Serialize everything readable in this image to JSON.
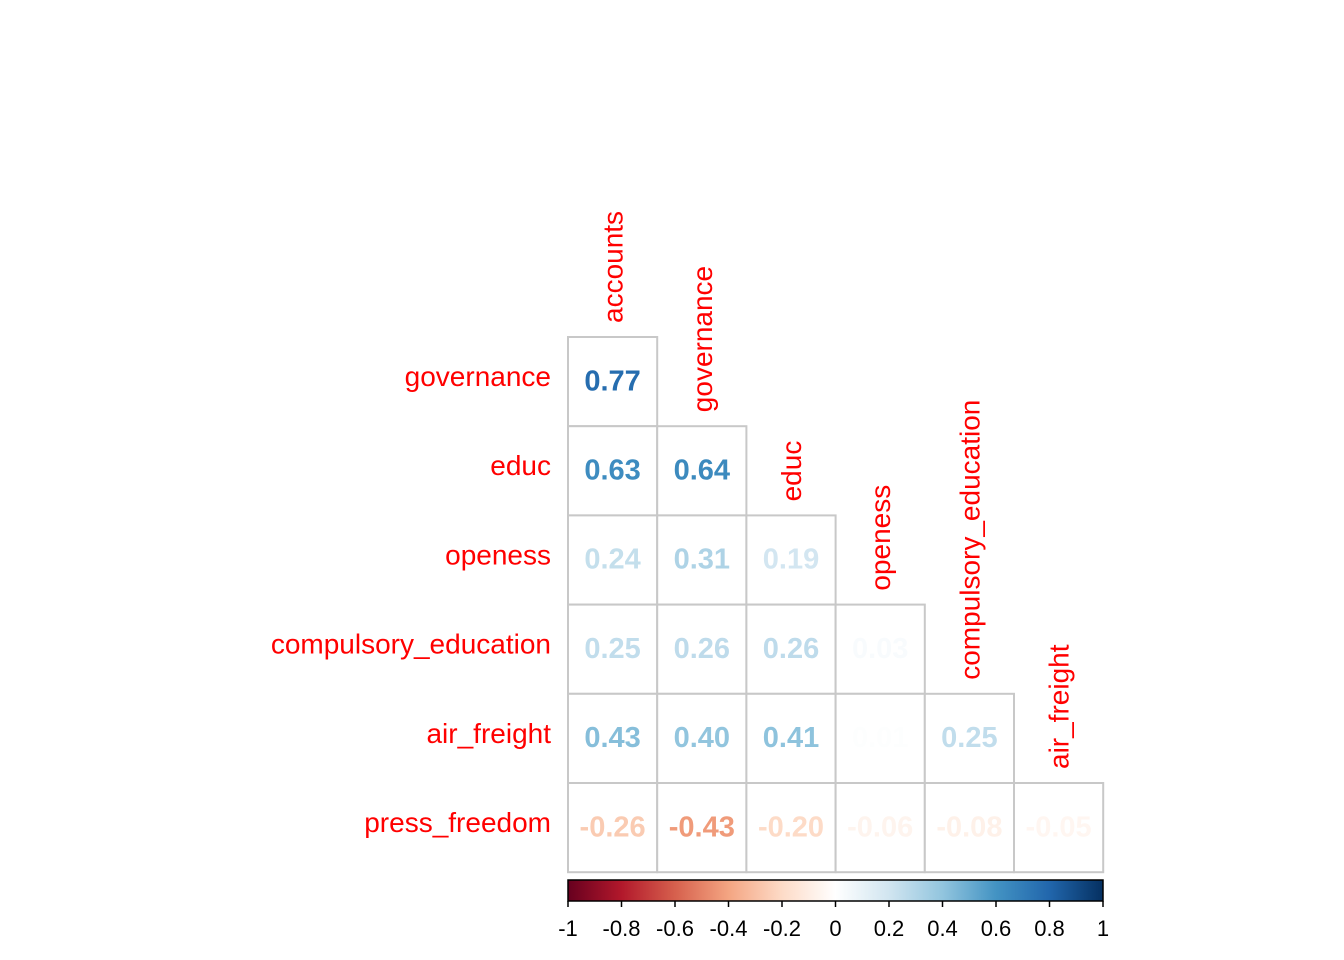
{
  "chart_data": {
    "type": "heatmap",
    "variables": [
      "accounts",
      "governance",
      "educ",
      "openess",
      "compulsory_education",
      "air_freight",
      "press_freedom"
    ],
    "row_labels": [
      "governance",
      "educ",
      "openess",
      "compulsory_education",
      "air_freight",
      "press_freedom"
    ],
    "column_labels": [
      "accounts",
      "governance",
      "educ",
      "openess",
      "compulsory_education",
      "air_freight"
    ],
    "matrix": [
      [
        0.77
      ],
      [
        0.63,
        0.64
      ],
      [
        0.24,
        0.31,
        0.19
      ],
      [
        0.25,
        0.26,
        0.26,
        0.03
      ],
      [
        0.43,
        0.4,
        0.41,
        0.01,
        0.25
      ],
      [
        -0.26,
        -0.43,
        -0.2,
        -0.06,
        -0.08,
        -0.05
      ]
    ],
    "cell_labels": [
      [
        "0.77"
      ],
      [
        "0.63",
        "0.64"
      ],
      [
        "0.24",
        "0.31",
        "0.19"
      ],
      [
        "0.25",
        "0.26",
        "0.26",
        "0.03"
      ],
      [
        "0.43",
        "0.40",
        "0.41",
        "0.01",
        "0.25"
      ],
      [
        "-0.26",
        "-0.43",
        "-0.20",
        "-0.06",
        "-0.08",
        "-0.05"
      ]
    ],
    "color_scale": {
      "range": [
        -1,
        1
      ],
      "ticks": [
        "-1",
        "-0.8",
        "-0.6",
        "-0.4",
        "-0.2",
        "0",
        "0.2",
        "0.4",
        "0.6",
        "0.8",
        "1"
      ],
      "colors": [
        "#67001F",
        "#B2182B",
        "#D6604D",
        "#F4A582",
        "#FDDBC7",
        "#FFFFFF",
        "#D1E5F0",
        "#92C5DE",
        "#4393C3",
        "#2166AC",
        "#053061"
      ]
    },
    "label_color": "#FF0000",
    "grid_color": "#C8C8C8"
  }
}
